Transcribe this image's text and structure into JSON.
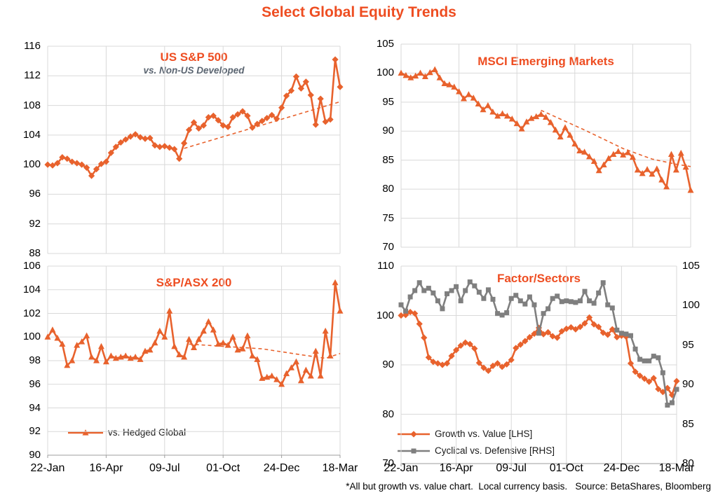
{
  "page": {
    "title": "Select Global Equity Trends",
    "footnote": "*All but growth vs. value chart.  Local currency basis.   Source: BetaShares, Bloomberg"
  },
  "colors": {
    "accent_orange": "#e8622d",
    "title_orange": "#ee4d21",
    "series_gray": "#7f7f7f",
    "subtitle_gray": "#5a6470",
    "gridline": "#d9d9d9",
    "axis_line": "#9e9e9e",
    "text": "#000000"
  },
  "x_labels": [
    "22-Jan",
    "16-Apr",
    "09-Jul",
    "01-Oct",
    "24-Dec",
    "18-Mar"
  ],
  "chart_data": [
    {
      "id": "us-sp500",
      "type": "line",
      "title": "US S&P 500",
      "subtitle": "vs. Non-US Developed",
      "x_categories": [
        "22-Jan",
        "16-Apr",
        "09-Jul",
        "01-Oct",
        "24-Dec",
        "18-Mar"
      ],
      "y_axis": {
        "min": 88,
        "max": 116,
        "ticks": [
          116,
          112,
          108,
          104,
          100,
          96,
          92,
          88
        ]
      },
      "series": [
        {
          "name": "US S&P 500 vs. Non-US Developed",
          "color": "#e8622d",
          "marker": "diamond",
          "values": [
            100.0,
            99.9,
            100.2,
            101.0,
            100.8,
            100.4,
            100.2,
            100.0,
            99.6,
            98.5,
            99.4,
            100.1,
            100.4,
            101.6,
            102.4,
            103.0,
            103.4,
            103.8,
            104.1,
            103.7,
            103.5,
            103.6,
            102.6,
            102.4,
            102.5,
            102.3,
            102.1,
            100.8,
            102.9,
            104.7,
            105.7,
            104.9,
            105.3,
            106.4,
            106.6,
            106.0,
            105.3,
            105.1,
            106.4,
            106.8,
            107.2,
            106.6,
            105.0,
            105.5,
            105.9,
            106.3,
            106.7,
            106.2,
            107.7,
            109.3,
            110.0,
            111.9,
            110.3,
            111.2,
            109.4,
            105.4,
            108.9,
            105.8,
            106.1,
            114.2,
            110.5
          ]
        }
      ],
      "trend": {
        "color": "#e8622d",
        "points": [
          [
            28,
            102.2
          ],
          [
            60,
            108.5
          ]
        ]
      }
    },
    {
      "id": "msci-em",
      "type": "line",
      "title": "MSCI Emerging Markets",
      "x_categories": [
        "22-Jan",
        "16-Apr",
        "09-Jul",
        "01-Oct",
        "24-Dec",
        "18-Mar"
      ],
      "y_axis": {
        "min": 70,
        "max": 105,
        "ticks": [
          105,
          100,
          95,
          90,
          85,
          80,
          75,
          70
        ]
      },
      "series": [
        {
          "name": "MSCI Emerging Markets",
          "color": "#e8622d",
          "marker": "triangle",
          "values": [
            100.0,
            99.6,
            99.2,
            99.5,
            100.0,
            99.4,
            100.1,
            100.6,
            99.2,
            98.2,
            98.0,
            97.6,
            96.8,
            95.6,
            96.3,
            95.7,
            94.7,
            93.7,
            94.4,
            93.3,
            92.6,
            93.0,
            92.6,
            92.1,
            91.3,
            90.4,
            91.6,
            92.2,
            92.5,
            92.9,
            92.4,
            91.5,
            90.2,
            89.0,
            90.6,
            89.3,
            87.8,
            86.6,
            86.4,
            85.6,
            84.8,
            83.2,
            84.2,
            85.3,
            86.0,
            86.5,
            85.9,
            86.3,
            85.5,
            83.3,
            82.7,
            83.4,
            82.6,
            83.5,
            81.6,
            80.4,
            86.0,
            83.3,
            86.2,
            83.8,
            79.8
          ]
        }
      ],
      "trend": {
        "color": "#e8622d",
        "points": [
          [
            29,
            93.6
          ],
          [
            38,
            90.2
          ],
          [
            46,
            87.0
          ],
          [
            52,
            85.2
          ],
          [
            57,
            84.3
          ],
          [
            60,
            83.9
          ]
        ]
      }
    },
    {
      "id": "sp-asx200",
      "type": "line",
      "title": "S&P/ASX 200",
      "x_categories": [
        "22-Jan",
        "16-Apr",
        "09-Jul",
        "01-Oct",
        "24-Dec",
        "18-Mar"
      ],
      "y_axis": {
        "min": 90,
        "max": 106,
        "ticks": [
          106,
          104,
          102,
          100,
          98,
          96,
          94,
          92,
          90
        ]
      },
      "series": [
        {
          "name": "vs. Hedged Global",
          "color": "#e8622d",
          "marker": "triangle",
          "values": [
            100.0,
            100.6,
            99.9,
            99.4,
            97.6,
            98.0,
            99.3,
            99.6,
            100.1,
            98.3,
            98.0,
            99.2,
            97.9,
            98.4,
            98.2,
            98.3,
            98.4,
            98.2,
            98.3,
            98.1,
            98.8,
            98.9,
            99.5,
            100.5,
            100.0,
            102.2,
            99.2,
            98.5,
            98.3,
            99.8,
            99.1,
            99.8,
            100.5,
            101.3,
            100.6,
            99.4,
            99.5,
            99.3,
            100.0,
            98.9,
            99.0,
            100.1,
            98.4,
            98.1,
            96.5,
            96.6,
            96.7,
            96.4,
            96.0,
            96.9,
            97.4,
            97.9,
            96.3,
            97.2,
            96.7,
            98.8,
            96.7,
            100.5,
            98.4,
            104.6,
            102.2
          ]
        }
      ],
      "trend": {
        "color": "#e8622d",
        "points": [
          [
            29,
            99.4
          ],
          [
            44,
            99.0
          ],
          [
            52,
            98.5
          ],
          [
            57,
            98.2
          ],
          [
            60,
            98.6
          ]
        ]
      }
    },
    {
      "id": "factor-sectors",
      "type": "line",
      "title": "Factor/Sectors",
      "x_categories": [
        "22-Jan",
        "16-Apr",
        "09-Jul",
        "01-Oct",
        "24-Dec",
        "18-Mar"
      ],
      "y_axis_left": {
        "min": 70,
        "max": 110,
        "ticks": [
          110,
          100,
          90,
          80,
          70
        ]
      },
      "y_axis_right": {
        "min": 80,
        "max": 105,
        "ticks": [
          105,
          100,
          95,
          90,
          85,
          80
        ]
      },
      "series": [
        {
          "name": "Growth vs. Value [LHS]",
          "axis": "left",
          "color": "#e8622d",
          "marker": "diamond",
          "values": [
            100.0,
            100.1,
            100.7,
            100.4,
            98.3,
            95.5,
            91.5,
            90.6,
            90.3,
            90.0,
            90.3,
            91.8,
            93.0,
            93.9,
            94.5,
            94.2,
            93.3,
            90.4,
            89.4,
            88.8,
            89.8,
            90.3,
            89.6,
            90.1,
            91.0,
            93.4,
            94.1,
            94.8,
            95.6,
            96.3,
            97.5,
            96.2,
            96.6,
            95.8,
            95.5,
            96.8,
            97.3,
            97.6,
            97.2,
            97.7,
            98.4,
            99.6,
            98.2,
            97.7,
            96.5,
            96.1,
            97.2,
            95.6,
            95.9,
            95.7,
            90.3,
            88.6,
            87.8,
            87.2,
            86.6,
            87.3,
            85.1,
            84.5,
            85.3,
            83.9,
            86.7
          ]
        },
        {
          "name": "Cyclical vs. Defensive [RHS]",
          "axis": "right",
          "color": "#7f7f7f",
          "marker": "square",
          "values": [
            100.1,
            99.3,
            101.1,
            101.9,
            102.9,
            101.9,
            102.2,
            101.6,
            100.6,
            99.6,
            101.5,
            101.9,
            102.4,
            100.6,
            101.9,
            103.0,
            102.5,
            101.7,
            100.9,
            102.0,
            100.8,
            99.0,
            98.8,
            99.1,
            100.9,
            101.3,
            100.6,
            100.2,
            101.1,
            100.1,
            96.5,
            99.0,
            99.6,
            100.9,
            101.2,
            100.5,
            100.6,
            100.5,
            100.4,
            100.6,
            101.8,
            100.6,
            100.3,
            101.6,
            102.9,
            100.1,
            99.7,
            96.9,
            96.5,
            96.4,
            96.2,
            94.5,
            93.2,
            93.0,
            93.0,
            93.6,
            93.4,
            91.5,
            87.4,
            87.7,
            89.4
          ]
        }
      ]
    }
  ]
}
